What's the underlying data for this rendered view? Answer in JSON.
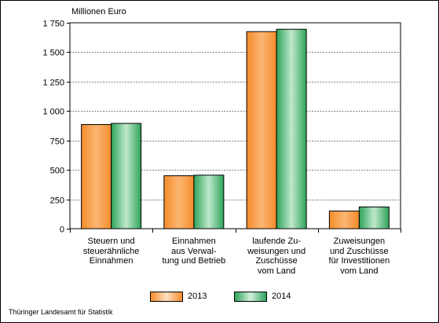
{
  "chart_data": {
    "type": "bar",
    "unit_label": "Millionen Euro",
    "categories": [
      "Steuern und\nsteuerähnliche\nEinnahmen",
      "Einnahmen\naus Verwal-\ntung und Betrieb",
      "laufende Zu-\nweisungen und\nZuschüsse\nvom Land",
      "Zuweisungen\nund Zuschüsse\nfür Investitionen\nvom Land"
    ],
    "series": [
      {
        "name": "2013",
        "values": [
          885,
          450,
          1675,
          150
        ],
        "color": "#f58c2a"
      },
      {
        "name": "2014",
        "values": [
          895,
          455,
          1695,
          185
        ],
        "color": "#2ea35a"
      }
    ],
    "y_ticks": [
      "0",
      "250",
      "500",
      "750",
      "1 000",
      "1 250",
      "1 500",
      "1 750"
    ],
    "ylim": [
      0,
      1750
    ],
    "grid": true,
    "legend_position": "bottom"
  },
  "source": "Thüringer Landesamt für Statistik"
}
